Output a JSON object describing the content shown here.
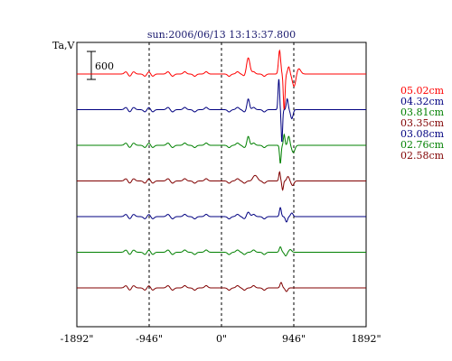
{
  "chart_data": {
    "type": "line",
    "title": "sun:2006/06/13 13:13:37.800",
    "ylabel": "Ta,V",
    "xlabel": "",
    "x_ticks": [
      "-1892\"",
      "-946\"",
      "0\"",
      "946\"",
      "1892\""
    ],
    "x_tick_values": [
      -1892,
      -946,
      0,
      946,
      1892
    ],
    "xlim": [
      -1892,
      1892
    ],
    "grid": "vertical dashed at -946, 0, 946",
    "scale_bar": {
      "label": "600",
      "value": 600
    },
    "series": [
      {
        "name": "05.02cm",
        "color": "#ff0000",
        "waveform": "red_top"
      },
      {
        "name": "04.32cm",
        "color": "#000080",
        "waveform": "blue_top"
      },
      {
        "name": "03.81cm",
        "color": "#008000",
        "waveform": "green_mid"
      },
      {
        "name": "03.35cm",
        "color": "#800000",
        "waveform": "maroon_mid"
      },
      {
        "name": "03.08cm",
        "color": "#000080",
        "waveform": "blue_low"
      },
      {
        "name": "02.76cm",
        "color": "#008000",
        "waveform": "green_low"
      },
      {
        "name": "02.58cm",
        "color": "#800000",
        "waveform": "maroon_low"
      }
    ],
    "legend_placement": "right"
  }
}
